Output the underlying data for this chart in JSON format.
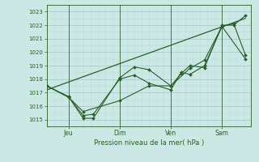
{
  "background_color": "#cce8e4",
  "grid_color_major": "#aacccc",
  "grid_color_minor": "#bbdddd",
  "line_color": "#2a5e2a",
  "xlabel": "Pression niveau de la mer( hPa )",
  "ylim": [
    1014.5,
    1023.5
  ],
  "yticks": [
    1015,
    1016,
    1017,
    1018,
    1019,
    1020,
    1021,
    1022,
    1023
  ],
  "xlim": [
    0,
    7.0
  ],
  "xtick_labels": [
    "Jeu",
    "Dim",
    "Ven",
    "Sam"
  ],
  "xtick_positions": [
    0.75,
    2.5,
    4.25,
    6.0
  ],
  "vline_positions": [
    0.75,
    2.5,
    4.25,
    6.0
  ],
  "series": [
    {
      "x": [
        0.0,
        0.75,
        1.25,
        1.6,
        2.5,
        3.0,
        3.5,
        4.25,
        4.6,
        4.9,
        5.4,
        6.0,
        6.4,
        6.8
      ],
      "y": [
        1017.5,
        1016.7,
        1015.1,
        1015.1,
        1018.1,
        1018.9,
        1018.7,
        1017.5,
        1018.4,
        1019.0,
        1018.85,
        1022.0,
        1022.0,
        1022.7
      ]
    },
    {
      "x": [
        0.0,
        0.75,
        1.25,
        1.6,
        2.5,
        3.0,
        3.5,
        4.25,
        4.6,
        4.9,
        5.4,
        6.0,
        6.4,
        6.8
      ],
      "y": [
        1017.5,
        1016.7,
        1015.3,
        1015.4,
        1018.0,
        1018.3,
        1017.7,
        1017.2,
        1018.5,
        1018.35,
        1019.0,
        1021.9,
        1022.1,
        1019.8
      ]
    },
    {
      "x": [
        0.0,
        0.75,
        1.25,
        2.5,
        3.5,
        4.25,
        4.9,
        5.4,
        6.0,
        6.8
      ],
      "y": [
        1017.5,
        1016.65,
        1015.6,
        1016.4,
        1017.5,
        1017.5,
        1018.8,
        1019.4,
        1021.9,
        1019.5
      ]
    },
    {
      "x": [
        0.0,
        6.8
      ],
      "y": [
        1017.2,
        1022.5
      ]
    }
  ]
}
